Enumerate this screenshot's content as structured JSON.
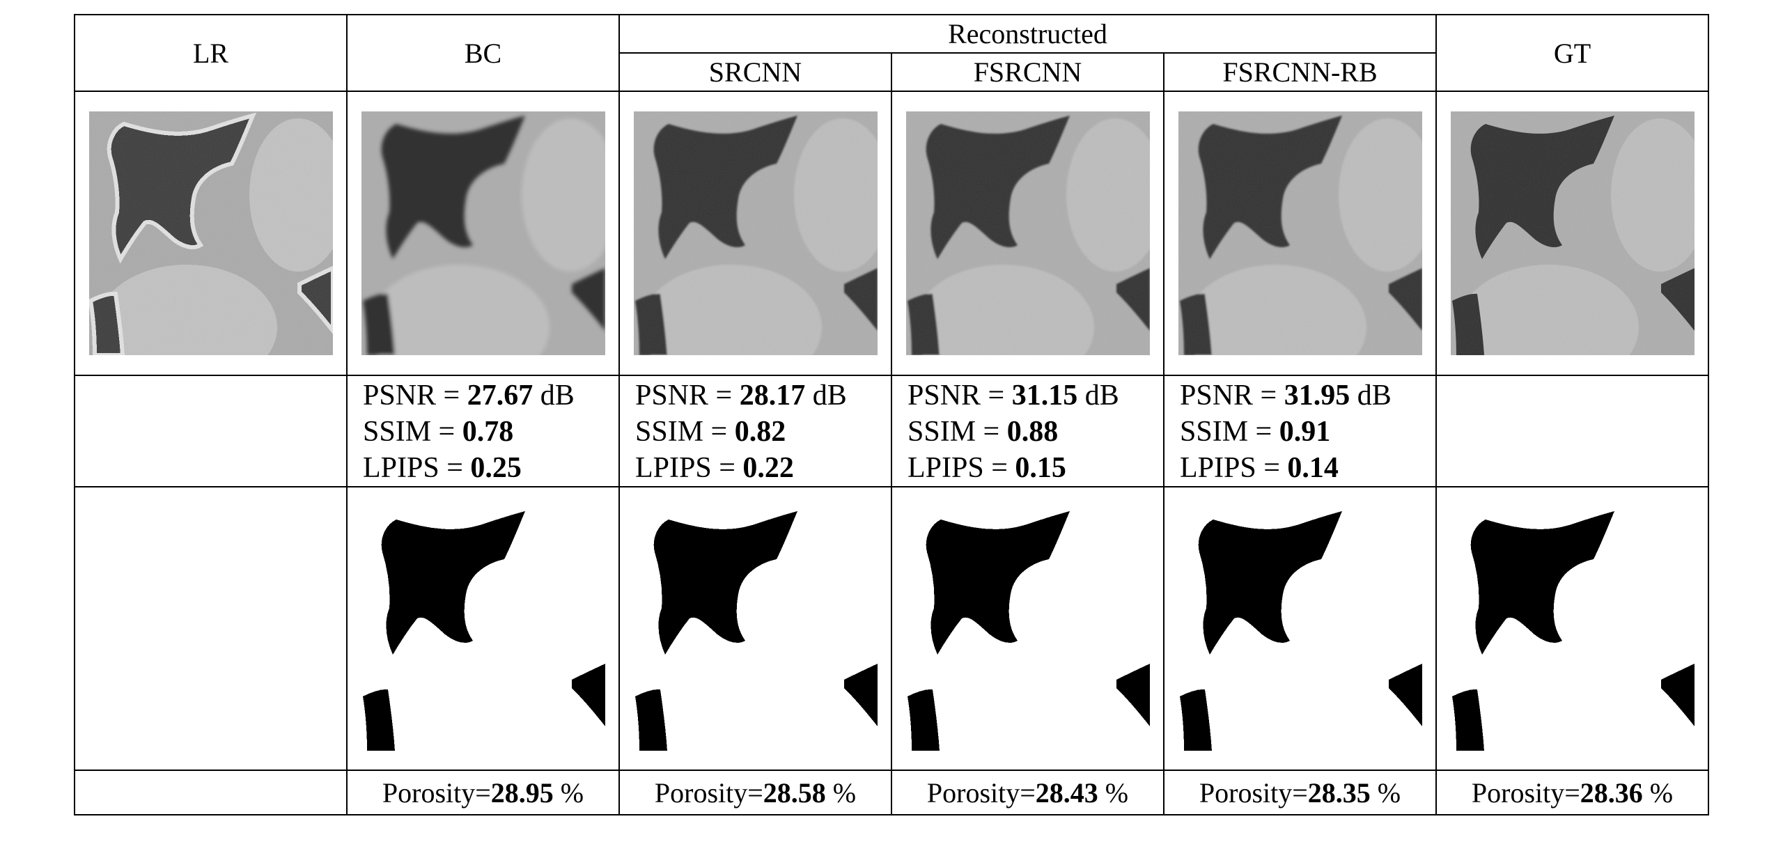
{
  "headers": {
    "lr": "LR",
    "bc": "BC",
    "group": "Reconstructed",
    "srcnn": "SRCNN",
    "fsrcnn": "FSRCNN",
    "fsrcnn_rb": "FSRCNN-RB",
    "gt": "GT"
  },
  "images": {
    "lr": "low-resolution grayscale micro-CT crop",
    "bc": "bicubic reconstruction crop",
    "srcnn": "SRCNN reconstruction crop",
    "fsrcnn": "FSRCNN reconstruction crop",
    "fsrcnn_rb": "FSRCNN-RB reconstruction crop",
    "gt": "ground truth crop"
  },
  "metrics": {
    "psnr_label": "PSNR = ",
    "ssim_label": "SSIM = ",
    "lpips_label": "LPIPS = ",
    "db_unit": " dB",
    "bc": {
      "psnr": "27.67",
      "ssim": "0.78",
      "lpips": "0.25"
    },
    "srcnn": {
      "psnr": "28.17",
      "ssim": "0.82",
      "lpips": "0.22"
    },
    "fsrcnn": {
      "psnr": "31.15",
      "ssim": "0.88",
      "lpips": "0.15"
    },
    "fsrcnn_rb": {
      "psnr": "31.95",
      "ssim": "0.91",
      "lpips": "0.14"
    }
  },
  "porosity": {
    "label": "Porosity=",
    "unit": " %",
    "bc": "28.95",
    "srcnn": "28.58",
    "fsrcnn": "28.43",
    "fsrcnn_rb": "28.35",
    "gt": "28.36"
  },
  "colors": {
    "pore": "#2f2f2f",
    "grain": "#b4b4b4",
    "binary_pore": "#000000",
    "binary_grain": "#ffffff"
  }
}
